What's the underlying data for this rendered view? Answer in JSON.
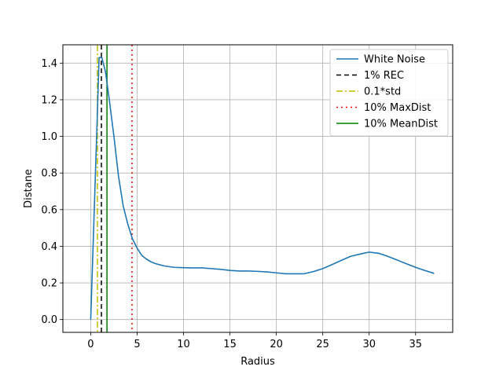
{
  "chart_data": {
    "type": "line",
    "title": "",
    "xlabel": "Radius",
    "ylabel": "Distane",
    "xlim": [
      -3,
      39
    ],
    "ylim": [
      -0.07,
      1.5
    ],
    "xticks": [
      0,
      5,
      10,
      15,
      20,
      25,
      30,
      35
    ],
    "yticks": [
      0.0,
      0.2,
      0.4,
      0.6,
      0.8,
      1.0,
      1.2,
      1.4
    ],
    "xtick_labels": [
      "0",
      "5",
      "10",
      "15",
      "20",
      "25",
      "30",
      "35"
    ],
    "ytick_labels": [
      "0.0",
      "0.2",
      "0.4",
      "0.6",
      "0.8",
      "1.0",
      "1.2",
      "1.4"
    ],
    "grid": true,
    "legend_position": "top-right",
    "series": [
      {
        "name": "White Noise",
        "color": "#1f77b4",
        "style": "solid",
        "x": [
          0,
          0.7,
          0.9,
          1.2,
          1.6,
          2.0,
          2.5,
          3.0,
          3.5,
          4.0,
          4.5,
          5.0,
          5.5,
          6.0,
          6.5,
          7.0,
          7.5,
          8.0,
          9.0,
          10.0,
          11.0,
          12.0,
          13.0,
          14.0,
          15.0,
          16.0,
          17.0,
          18.0,
          19.0,
          20.0,
          21.0,
          22.0,
          23.0,
          24.0,
          25.0,
          26.0,
          27.0,
          28.0,
          29.0,
          30.0,
          31.0,
          32.0,
          33.0,
          34.0,
          35.0,
          36.0,
          37.0
        ],
        "y": [
          0.0,
          1.1,
          1.43,
          1.43,
          1.35,
          1.2,
          1.0,
          0.78,
          0.62,
          0.52,
          0.44,
          0.39,
          0.35,
          0.33,
          0.315,
          0.305,
          0.298,
          0.292,
          0.285,
          0.283,
          0.282,
          0.282,
          0.278,
          0.274,
          0.268,
          0.265,
          0.265,
          0.263,
          0.26,
          0.255,
          0.25,
          0.25,
          0.25,
          0.262,
          0.278,
          0.3,
          0.323,
          0.345,
          0.357,
          0.368,
          0.362,
          0.345,
          0.325,
          0.305,
          0.285,
          0.268,
          0.252
        ]
      }
    ],
    "vlines": [
      {
        "name": "1% REC",
        "x": 1.15,
        "color": "#000000",
        "style": "dashed"
      },
      {
        "name": "0.1*std",
        "x": 0.72,
        "color": "#bfbf00",
        "style": "dashdot"
      },
      {
        "name": "10% MaxDist",
        "x": 4.45,
        "color": "#ff0000",
        "style": "dotted"
      },
      {
        "name": "10% MeanDist",
        "x": 1.75,
        "color": "#008000",
        "style": "solid"
      }
    ],
    "legend_entries": [
      {
        "label": "White Noise",
        "color": "#1f77b4",
        "style": "solid"
      },
      {
        "label": "1% REC",
        "color": "#000000",
        "style": "dashed"
      },
      {
        "label": "0.1*std",
        "color": "#bfbf00",
        "style": "dashdot"
      },
      {
        "label": "10% MaxDist",
        "color": "#ff0000",
        "style": "dotted"
      },
      {
        "label": "10% MeanDist",
        "color": "#008000",
        "style": "solid"
      }
    ]
  }
}
